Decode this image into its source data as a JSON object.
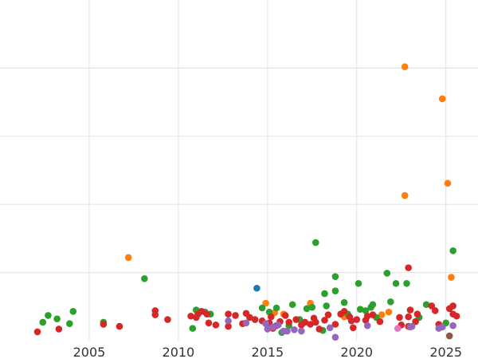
{
  "chart_data": {
    "type": "scatter",
    "title": "",
    "xlabel": "",
    "ylabel": "",
    "xlim": [
      2000,
      2026.8
    ],
    "ylim": [
      0,
      5
    ],
    "x_ticks": [
      2005,
      2010,
      2015,
      2020,
      2025
    ],
    "x_tick_labels": [
      "2005",
      "2010",
      "2015",
      "2020",
      "2025"
    ],
    "y_gridlines": [
      1,
      2,
      3,
      4
    ],
    "grid": true,
    "legend": "none",
    "colors": {
      "orange": "#ff7f0e",
      "green": "#2ca02c",
      "red": "#d62728",
      "blue": "#1f77b4",
      "purple": "#9467bd",
      "pink": "#e377c2",
      "brown": "#8c564b"
    },
    "series": [
      {
        "color": "orange",
        "points": [
          [
            2007.2,
            1.22
          ],
          [
            2014.9,
            0.55
          ],
          [
            2015.4,
            0.41
          ],
          [
            2015.9,
            0.39
          ],
          [
            2017.4,
            0.55
          ],
          [
            2019.3,
            0.35
          ],
          [
            2021.4,
            0.38
          ],
          [
            2021.8,
            0.42
          ],
          [
            2022.7,
            4.02
          ],
          [
            2022.7,
            2.13
          ],
          [
            2024.8,
            3.55
          ],
          [
            2025.1,
            2.31
          ],
          [
            2025.3,
            0.93
          ]
        ]
      },
      {
        "color": "green",
        "points": [
          [
            2002.4,
            0.27
          ],
          [
            2002.7,
            0.37
          ],
          [
            2003.2,
            0.32
          ],
          [
            2003.9,
            0.25
          ],
          [
            2004.1,
            0.43
          ],
          [
            2005.8,
            0.27
          ],
          [
            2008.1,
            0.91
          ],
          [
            2010.8,
            0.18
          ],
          [
            2011.0,
            0.45
          ],
          [
            2011.5,
            0.42
          ],
          [
            2011.8,
            0.39
          ],
          [
            2014.7,
            0.48
          ],
          [
            2015.1,
            0.42
          ],
          [
            2015.5,
            0.48
          ],
          [
            2015.8,
            0.12
          ],
          [
            2016.2,
            0.22
          ],
          [
            2016.4,
            0.53
          ],
          [
            2016.8,
            0.31
          ],
          [
            2017.2,
            0.47
          ],
          [
            2017.5,
            0.49
          ],
          [
            2017.7,
            1.44
          ],
          [
            2018.1,
            0.15
          ],
          [
            2018.2,
            0.69
          ],
          [
            2018.3,
            0.51
          ],
          [
            2018.8,
            0.94
          ],
          [
            2018.8,
            0.73
          ],
          [
            2019.3,
            0.56
          ],
          [
            2019.5,
            0.39
          ],
          [
            2020.1,
            0.84
          ],
          [
            2020.2,
            0.46
          ],
          [
            2020.5,
            0.44
          ],
          [
            2020.8,
            0.49
          ],
          [
            2020.9,
            0.53
          ],
          [
            2021.1,
            0.34
          ],
          [
            2021.7,
            0.99
          ],
          [
            2021.9,
            0.57
          ],
          [
            2022.2,
            0.84
          ],
          [
            2022.8,
            0.84
          ],
          [
            2023.5,
            0.34
          ],
          [
            2023.9,
            0.53
          ],
          [
            2025.4,
            1.32
          ],
          [
            2025.0,
            0.26
          ]
        ]
      },
      {
        "color": "red",
        "points": [
          [
            2002.1,
            0.13
          ],
          [
            2003.3,
            0.17
          ],
          [
            2005.8,
            0.24
          ],
          [
            2006.7,
            0.21
          ],
          [
            2008.7,
            0.44
          ],
          [
            2008.7,
            0.38
          ],
          [
            2009.4,
            0.31
          ],
          [
            2010.7,
            0.36
          ],
          [
            2011.0,
            0.34
          ],
          [
            2011.1,
            0.39
          ],
          [
            2011.3,
            0.43
          ],
          [
            2011.6,
            0.39
          ],
          [
            2011.7,
            0.26
          ],
          [
            2012.1,
            0.23
          ],
          [
            2012.8,
            0.21
          ],
          [
            2012.8,
            0.39
          ],
          [
            2013.2,
            0.37
          ],
          [
            2013.6,
            0.25
          ],
          [
            2013.8,
            0.4
          ],
          [
            2014.0,
            0.34
          ],
          [
            2014.3,
            0.31
          ],
          [
            2014.7,
            0.29
          ],
          [
            2015.1,
            0.26
          ],
          [
            2015.2,
            0.35
          ],
          [
            2015.3,
            0.18
          ],
          [
            2015.5,
            0.22
          ],
          [
            2015.7,
            0.28
          ],
          [
            2016.0,
            0.37
          ],
          [
            2016.2,
            0.27
          ],
          [
            2016.6,
            0.31
          ],
          [
            2016.9,
            0.23
          ],
          [
            2017.1,
            0.27
          ],
          [
            2017.4,
            0.24
          ],
          [
            2017.6,
            0.33
          ],
          [
            2017.7,
            0.27
          ],
          [
            2017.9,
            0.17
          ],
          [
            2018.2,
            0.3
          ],
          [
            2018.4,
            0.38
          ],
          [
            2018.8,
            0.24
          ],
          [
            2019.1,
            0.39
          ],
          [
            2019.3,
            0.43
          ],
          [
            2019.6,
            0.35
          ],
          [
            2019.7,
            0.29
          ],
          [
            2019.8,
            0.19
          ],
          [
            2020.0,
            0.31
          ],
          [
            2020.5,
            0.3
          ],
          [
            2020.6,
            0.36
          ],
          [
            2020.9,
            0.38
          ],
          [
            2021.3,
            0.28
          ],
          [
            2022.4,
            0.34
          ],
          [
            2022.5,
            0.23
          ],
          [
            2022.9,
            0.21
          ],
          [
            2022.9,
            0.35
          ],
          [
            2022.9,
            1.07
          ],
          [
            2023.0,
            0.45
          ],
          [
            2023.3,
            0.28
          ],
          [
            2023.4,
            0.39
          ],
          [
            2024.2,
            0.51
          ],
          [
            2024.4,
            0.44
          ],
          [
            2024.6,
            0.24
          ],
          [
            2025.2,
            0.47
          ],
          [
            2025.4,
            0.51
          ],
          [
            2025.4,
            0.39
          ],
          [
            2025.6,
            0.36
          ]
        ]
      },
      {
        "color": "blue",
        "points": [
          [
            2014.4,
            0.77
          ]
        ]
      },
      {
        "color": "purple",
        "points": [
          [
            2012.8,
            0.29
          ],
          [
            2013.8,
            0.26
          ],
          [
            2014.9,
            0.25
          ],
          [
            2015.0,
            0.17
          ],
          [
            2015.3,
            0.2
          ],
          [
            2015.6,
            0.23
          ],
          [
            2015.9,
            0.14
          ],
          [
            2016.1,
            0.14
          ],
          [
            2016.5,
            0.16
          ],
          [
            2016.9,
            0.14
          ],
          [
            2018.5,
            0.19
          ],
          [
            2018.8,
            0.05
          ],
          [
            2020.6,
            0.22
          ],
          [
            2023.0,
            0.2
          ],
          [
            2023.1,
            0.21
          ],
          [
            2024.6,
            0.18
          ],
          [
            2024.8,
            0.2
          ],
          [
            2025.4,
            0.22
          ]
        ]
      },
      {
        "color": "pink",
        "points": [
          [
            2022.3,
            0.18
          ]
        ]
      },
      {
        "color": "brown",
        "points": [
          [
            2025.2,
            0.07
          ]
        ]
      }
    ]
  }
}
